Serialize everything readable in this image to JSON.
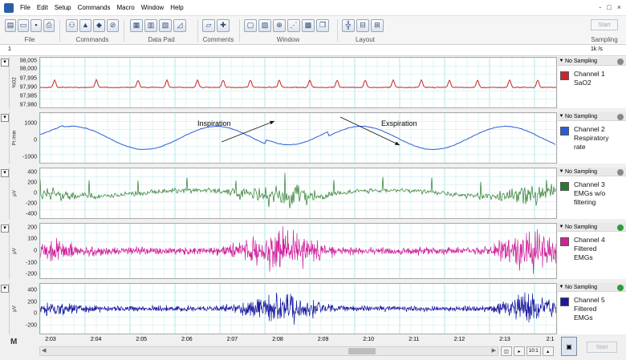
{
  "menu": [
    "File",
    "Edit",
    "Setup",
    "Commands",
    "Macro",
    "Window",
    "Help"
  ],
  "window_controls": [
    "-",
    "□",
    "×"
  ],
  "toolbar": {
    "groups": [
      {
        "label": "File",
        "icons": [
          "new-file-icon",
          "open-file-icon",
          "save-icon",
          "print-icon"
        ]
      },
      {
        "label": "Commands",
        "icons": [
          "binoculars-icon",
          "marker-icon",
          "clear-icon",
          "cancel-icon"
        ]
      },
      {
        "label": "Data Pad",
        "icons": [
          "datapad-icon",
          "datapad-columns-icon",
          "datapad-edit-icon",
          "datapad-chart-icon"
        ]
      },
      {
        "label": "Comments",
        "icons": [
          "comment-folder-icon",
          "comment-add-icon"
        ]
      },
      {
        "label": "Window",
        "icons": [
          "window-blank-icon",
          "window-chart-icon",
          "window-zoom-icon",
          "window-xy-icon",
          "window-image-icon",
          "window-copy-icon"
        ]
      },
      {
        "label": "Layout",
        "icons": [
          "layout-grid-icon",
          "layout-split-icon",
          "layout-add-icon"
        ]
      },
      {
        "label": "Sampling",
        "icons": []
      }
    ],
    "start_label": "Start"
  },
  "rate_bar": {
    "left_value": "1",
    "rate": "1k /s"
  },
  "channels": [
    {
      "status": "No Sampling",
      "label": [
        "Channel 1",
        "SaO2"
      ],
      "unit": "%O2",
      "color": "#c8262c",
      "ticks": [
        "98,005",
        "98,000",
        "97,995",
        "97,990",
        "97,985",
        "97,980"
      ]
    },
    {
      "status": "No Sampling",
      "label": [
        "Channel 2",
        "Respiratory",
        "rate"
      ],
      "unit": "Pt /min",
      "color": "#2b5bd7",
      "ticks": [
        "1000",
        "0",
        "-1000"
      ],
      "annotations": [
        "Inspiration",
        "Exspiration"
      ]
    },
    {
      "status": "No Sampling",
      "label": [
        "Channel 3",
        "EMGs w/o",
        "filtering"
      ],
      "unit": "µV",
      "color": "#2b7a2b",
      "ticks": [
        "400",
        "200",
        "0",
        "-200",
        "-400"
      ]
    },
    {
      "status": "No Sampling",
      "label": [
        "Channel 4",
        "Filtered",
        "EMGs"
      ],
      "unit": "µV",
      "color": "#d0209a",
      "ticks": [
        "200",
        "100",
        "0",
        "-100",
        "-200"
      ]
    },
    {
      "status": "No Sampling",
      "label": [
        "Channel 5",
        "Filtered",
        "EMGs"
      ],
      "unit": "µV",
      "color": "#1a1aa0",
      "ticks": [
        "400",
        "200",
        "0",
        "-200"
      ]
    }
  ],
  "time_axis": [
    "2:03",
    "2:04",
    "2:05",
    "2:06",
    "2:07",
    "2:08",
    "2:09",
    "2:10",
    "2:11",
    "2:12",
    "2:13",
    "2:1"
  ],
  "bottom": {
    "zoom": "10:1",
    "start_label": "Start"
  }
}
